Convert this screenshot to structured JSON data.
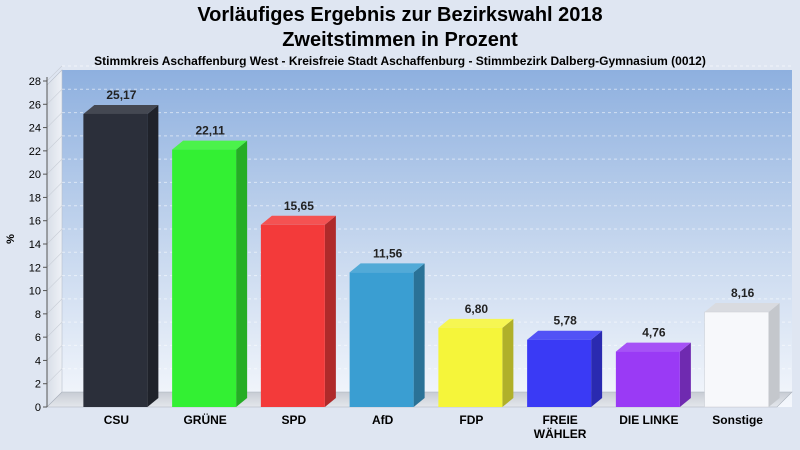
{
  "chart_data": {
    "type": "bar",
    "title": "Vorläufiges Ergebnis zur Bezirkswahl 2018",
    "subtitle": "Zweitstimmen in Prozent",
    "caption": "Stimmkreis Aschaffenburg West - Kreisfreie Stadt Aschaffenburg - Stimmbezirk Dalberg-Gymnasium (0012)",
    "ylabel": "%",
    "ylim": [
      0,
      28
    ],
    "yticks": [
      0,
      2,
      4,
      6,
      8,
      10,
      12,
      14,
      16,
      18,
      20,
      22,
      24,
      26,
      28
    ],
    "grid": true,
    "categories": [
      "CSU",
      "GRÜNE",
      "SPD",
      "AfD",
      "FDP",
      "FREIE WÄHLER",
      "DIE LINKE",
      "Sonstige"
    ],
    "category_lines": [
      [
        "CSU"
      ],
      [
        "GRÜNE"
      ],
      [
        "SPD"
      ],
      [
        "AfD"
      ],
      [
        "FDP"
      ],
      [
        "FREIE",
        "WÄHLER"
      ],
      [
        "DIE LINKE"
      ],
      [
        "Sonstige"
      ]
    ],
    "values": [
      25.17,
      22.11,
      15.65,
      11.56,
      6.8,
      5.78,
      4.76,
      8.16
    ],
    "value_labels": [
      "25,17",
      "22,11",
      "15,65",
      "11,56",
      "6,80",
      "5,78",
      "4,76",
      "8,16"
    ],
    "colors": [
      "#2b2f3a",
      "#33f033",
      "#f33a3a",
      "#3a9ed2",
      "#f5f53a",
      "#3a3af5",
      "#9a3af5",
      "#f7f8fb"
    ]
  }
}
